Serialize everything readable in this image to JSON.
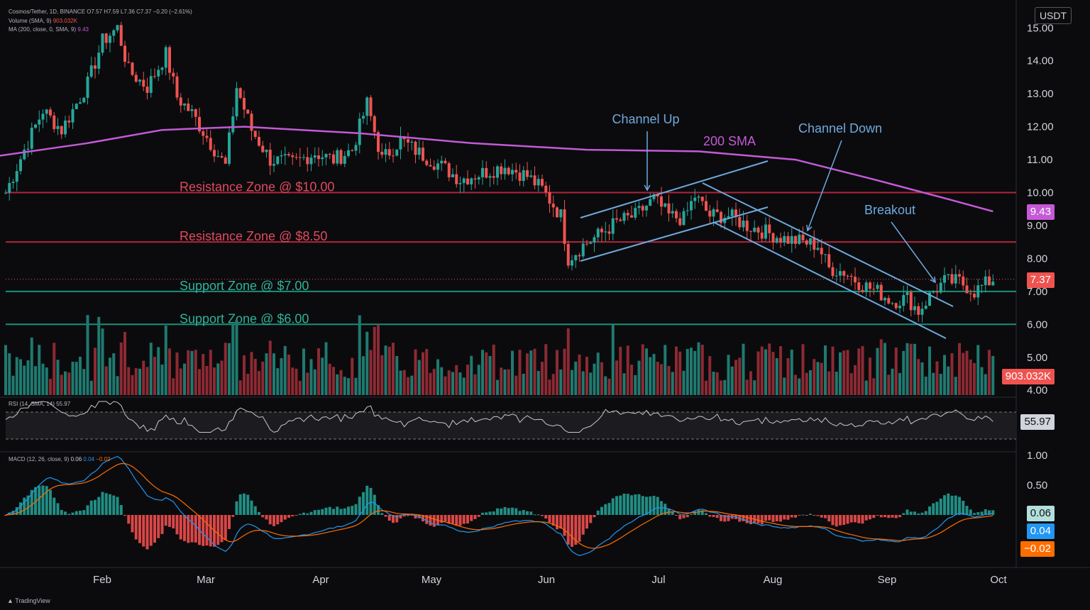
{
  "header": {
    "main": "Cosmos/Tether, 1D, BINANCE",
    "ohlc": "O7.57 H7.59 L7.36 C7.37 −0.20 (−2.61%)",
    "volume": "Volume (SMA, 9)",
    "volume_val": "903.032K",
    "ma": "MA (200, close, 0, SMA, 9)",
    "ma_val": "9.43",
    "rsi": "RSI (14, SMA, 14)",
    "rsi_val": "55.97",
    "macd": "MACD (12, 26, close, 9)",
    "macd_v1": "0.06",
    "macd_v2": "0.04",
    "macd_v3": "−0.02"
  },
  "currency": "USDT",
  "brand": "TradingView",
  "colors": {
    "up": "#26a69a",
    "down": "#ef5350",
    "sma": "#c45ad6",
    "channel": "#6ea9de",
    "resistance": "#b2243c",
    "support": "#1b8f7a",
    "bg": "#0b0b0d"
  },
  "tags": {
    "sma": "9.43",
    "price": "7.37",
    "volume": "903.032K",
    "rsi": "55.97",
    "macd_hist": "0.06",
    "macd_line": "0.04",
    "macd_signal": "−0.02"
  },
  "chart_data": {
    "type": "candlestick",
    "x_ticks": [
      "Feb",
      "Mar",
      "Apr",
      "May",
      "Jun",
      "Jul",
      "Aug",
      "Sep",
      "Oct"
    ],
    "y_ticks": [
      "15.00",
      "14.00",
      "13.00",
      "12.00",
      "11.00",
      "10.00",
      "9.00",
      "8.00",
      "7.00",
      "6.00",
      "5.00",
      "4.00"
    ],
    "ylim": [
      4,
      15.5
    ],
    "rsi_ticks": [],
    "macd_ticks": [
      "1.00",
      "0.50"
    ],
    "horizontal_zones": [
      {
        "label": "Resistance Zone @ $10.00",
        "value": 10.0,
        "kind": "resistance"
      },
      {
        "label": "Resistance Zone @ $8.50",
        "value": 8.5,
        "kind": "resistance"
      },
      {
        "label": "Support Zone @ $7.00",
        "value": 7.0,
        "kind": "support"
      },
      {
        "label": "Support Zone @ $6.00",
        "value": 6.0,
        "kind": "support"
      }
    ],
    "annotations": [
      "Channel Up",
      "Channel Down",
      "200 SMA",
      "Breakout"
    ],
    "price_path": [
      [
        "Jan 10",
        10.0
      ],
      [
        "Jan 15",
        11.3
      ],
      [
        "Jan 20",
        12.5
      ],
      [
        "Jan 25",
        11.9
      ],
      [
        "Feb 1",
        13.3
      ],
      [
        "Feb 5",
        14.6
      ],
      [
        "Feb 9",
        15.0
      ],
      [
        "Feb 12",
        13.7
      ],
      [
        "Feb 17",
        13.2
      ],
      [
        "Feb 22",
        14.2
      ],
      [
        "Feb 25",
        12.9
      ],
      [
        "Mar 1",
        12.4
      ],
      [
        "Mar 6",
        11.5
      ],
      [
        "Mar 10",
        10.8
      ],
      [
        "Mar 13",
        13.2
      ],
      [
        "Mar 17",
        11.9
      ],
      [
        "Mar 22",
        11.0
      ],
      [
        "Mar 28",
        10.9
      ],
      [
        "Apr 3",
        11.2
      ],
      [
        "Apr 8",
        11.0
      ],
      [
        "Apr 13",
        11.3
      ],
      [
        "Apr 17",
        12.7
      ],
      [
        "Apr 21",
        11.0
      ],
      [
        "Apr 26",
        11.6
      ],
      [
        "May 1",
        11.2
      ],
      [
        "May 7",
        10.8
      ],
      [
        "May 12",
        10.4
      ],
      [
        "May 18",
        10.6
      ],
      [
        "May 24",
        10.8
      ],
      [
        "May 30",
        10.5
      ],
      [
        "Jun 3",
        10.1
      ],
      [
        "Jun 8",
        9.3
      ],
      [
        "Jun 10",
        8.0
      ],
      [
        "Jun 14",
        8.4
      ],
      [
        "Jun 18",
        8.7
      ],
      [
        "Jun 23",
        9.1
      ],
      [
        "Jun 28",
        9.3
      ],
      [
        "Jul 3",
        9.8
      ],
      [
        "Jul 7",
        9.3
      ],
      [
        "Jul 11",
        9.2
      ],
      [
        "Jul 14",
        9.9
      ],
      [
        "Jul 18",
        9.3
      ],
      [
        "Jul 23",
        9.3
      ],
      [
        "Jul 28",
        9.0
      ],
      [
        "Aug 2",
        8.8
      ],
      [
        "Aug 7",
        8.6
      ],
      [
        "Aug 12",
        8.5
      ],
      [
        "Aug 16",
        8.4
      ],
      [
        "Aug 19",
        7.7
      ],
      [
        "Aug 23",
        7.6
      ],
      [
        "Aug 28",
        7.2
      ],
      [
        "Sep 1",
        7.0
      ],
      [
        "Sep 5",
        6.7
      ],
      [
        "Sep 9",
        6.8
      ],
      [
        "Sep 12",
        6.4
      ],
      [
        "Sep 16",
        7.0
      ],
      [
        "Sep 19",
        7.3
      ],
      [
        "Sep 23",
        7.3
      ],
      [
        "Sep 27",
        7.0
      ],
      [
        "Oct 2",
        7.37
      ]
    ],
    "sma200": [
      [
        "Jan 1",
        11.0
      ],
      [
        "Feb 1",
        11.5
      ],
      [
        "Feb 21",
        11.9
      ],
      [
        "Mar 15",
        12.0
      ],
      [
        "Apr 15",
        11.8
      ],
      [
        "May 15",
        11.5
      ],
      [
        "Jun 15",
        11.3
      ],
      [
        "Jul 15",
        11.25
      ],
      [
        "Aug 10",
        11.0
      ],
      [
        "Aug 31",
        10.4
      ],
      [
        "Sep 20",
        9.8
      ],
      [
        "Oct 2",
        9.43
      ]
    ]
  }
}
